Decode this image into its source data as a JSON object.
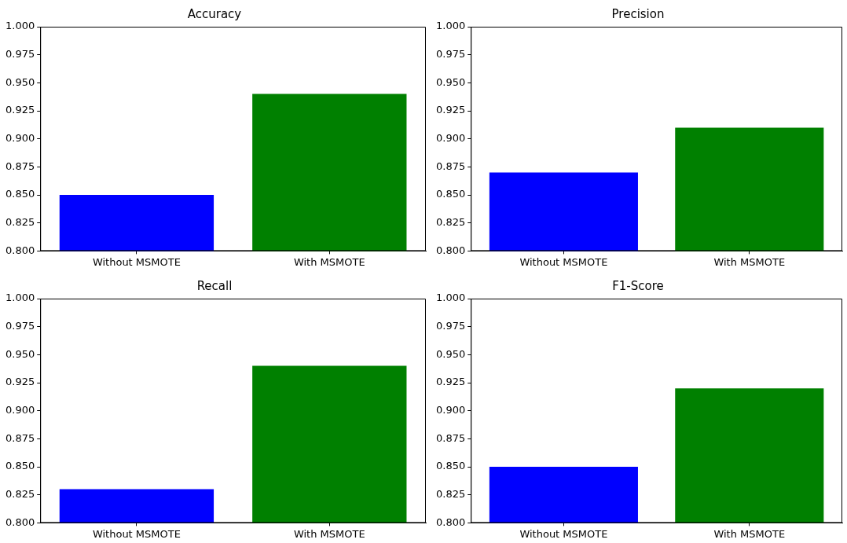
{
  "chart_data": [
    {
      "type": "bar",
      "title": "Accuracy",
      "categories": [
        "Without MSMOTE",
        "With MSMOTE"
      ],
      "values": [
        0.85,
        0.94
      ],
      "colors": [
        "#0000ff",
        "#008000"
      ],
      "ylim": [
        0.8,
        1.0
      ],
      "yticks": [
        {
          "value": 0.8,
          "label": "0.800"
        },
        {
          "value": 0.825,
          "label": "0.825"
        },
        {
          "value": 0.85,
          "label": "0.850"
        },
        {
          "value": 0.875,
          "label": "0.875"
        },
        {
          "value": 0.9,
          "label": "0.900"
        },
        {
          "value": 0.925,
          "label": "0.925"
        },
        {
          "value": 0.95,
          "label": "0.950"
        },
        {
          "value": 0.975,
          "label": "0.975"
        },
        {
          "value": 1.0,
          "label": "1.000"
        }
      ]
    },
    {
      "type": "bar",
      "title": "Precision",
      "categories": [
        "Without MSMOTE",
        "With MSMOTE"
      ],
      "values": [
        0.87,
        0.91
      ],
      "colors": [
        "#0000ff",
        "#008000"
      ],
      "ylim": [
        0.8,
        1.0
      ],
      "yticks": [
        {
          "value": 0.8,
          "label": "0.800"
        },
        {
          "value": 0.825,
          "label": "0.825"
        },
        {
          "value": 0.85,
          "label": "0.850"
        },
        {
          "value": 0.875,
          "label": "0.875"
        },
        {
          "value": 0.9,
          "label": "0.900"
        },
        {
          "value": 0.925,
          "label": "0.925"
        },
        {
          "value": 0.95,
          "label": "0.950"
        },
        {
          "value": 0.975,
          "label": "0.975"
        },
        {
          "value": 1.0,
          "label": "1.000"
        }
      ]
    },
    {
      "type": "bar",
      "title": "Recall",
      "categories": [
        "Without MSMOTE",
        "With MSMOTE"
      ],
      "values": [
        0.83,
        0.94
      ],
      "colors": [
        "#0000ff",
        "#008000"
      ],
      "ylim": [
        0.8,
        1.0
      ],
      "yticks": [
        {
          "value": 0.8,
          "label": "0.800"
        },
        {
          "value": 0.825,
          "label": "0.825"
        },
        {
          "value": 0.85,
          "label": "0.850"
        },
        {
          "value": 0.875,
          "label": "0.875"
        },
        {
          "value": 0.9,
          "label": "0.900"
        },
        {
          "value": 0.925,
          "label": "0.925"
        },
        {
          "value": 0.95,
          "label": "0.950"
        },
        {
          "value": 0.975,
          "label": "0.975"
        },
        {
          "value": 1.0,
          "label": "1.000"
        }
      ]
    },
    {
      "type": "bar",
      "title": "F1-Score",
      "categories": [
        "Without MSMOTE",
        "With MSMOTE"
      ],
      "values": [
        0.85,
        0.92
      ],
      "colors": [
        "#0000ff",
        "#008000"
      ],
      "ylim": [
        0.8,
        1.0
      ],
      "yticks": [
        {
          "value": 0.8,
          "label": "0.800"
        },
        {
          "value": 0.825,
          "label": "0.825"
        },
        {
          "value": 0.85,
          "label": "0.850"
        },
        {
          "value": 0.875,
          "label": "0.875"
        },
        {
          "value": 0.9,
          "label": "0.900"
        },
        {
          "value": 0.925,
          "label": "0.925"
        },
        {
          "value": 0.95,
          "label": "0.950"
        },
        {
          "value": 0.975,
          "label": "0.975"
        },
        {
          "value": 1.0,
          "label": "1.000"
        }
      ]
    }
  ]
}
